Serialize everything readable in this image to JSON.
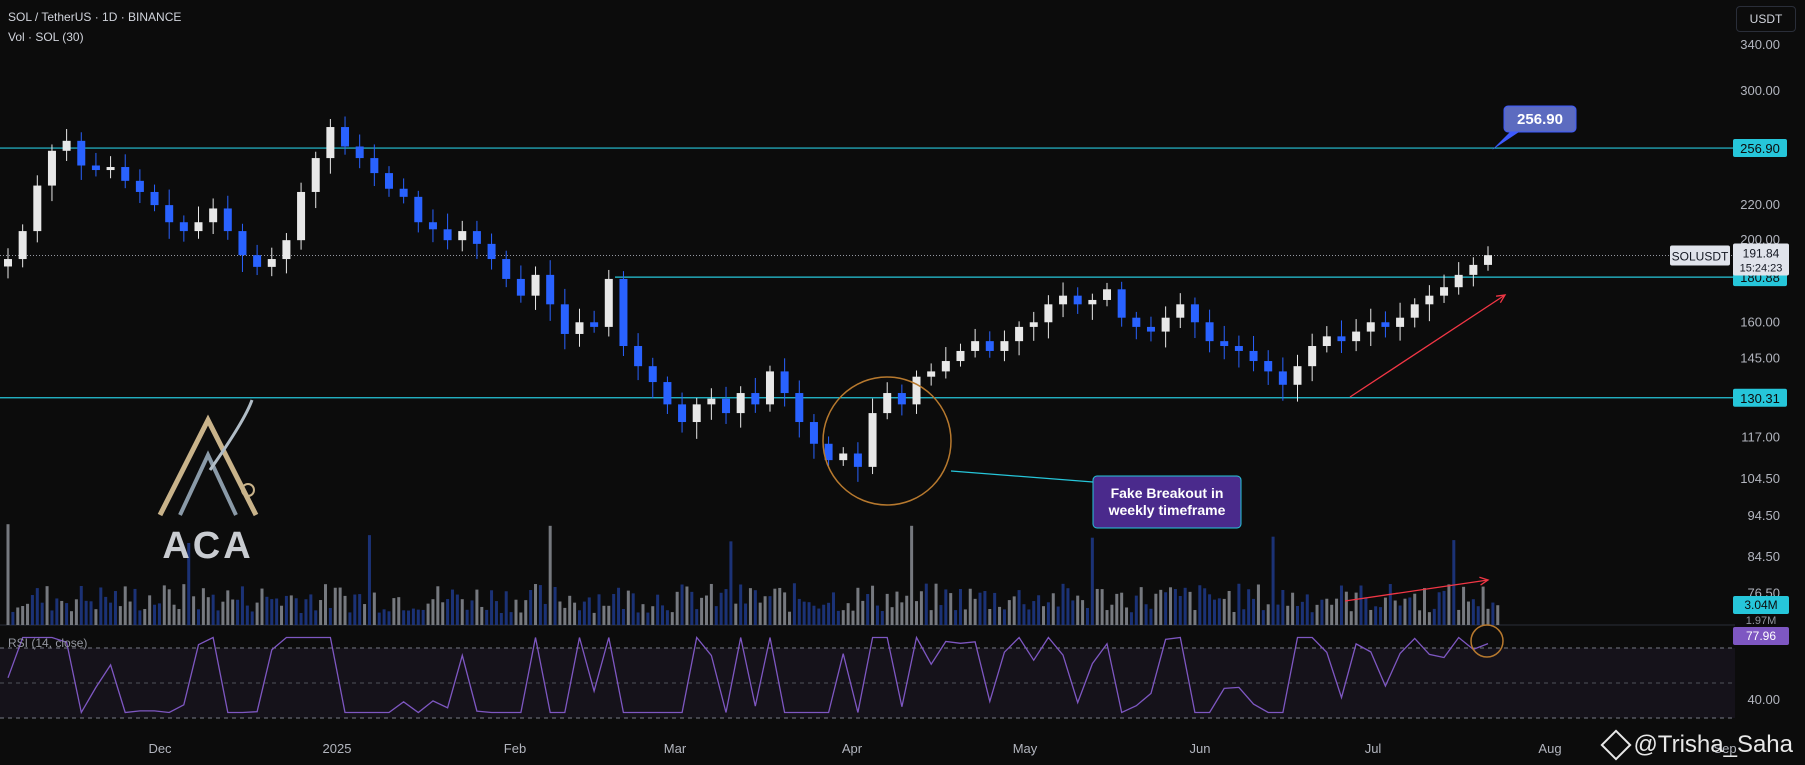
{
  "header": {
    "symbol_line": "SOL / TetherUS · 1D · BINANCE",
    "volume_line": "Vol · SOL (30)"
  },
  "currency_button": "USDT",
  "price_ticks": [
    "340.00",
    "300.00",
    "256.90",
    "220.00",
    "200.00",
    "180.88",
    "160.00",
    "145.00",
    "130.31",
    "117.00",
    "104.50",
    "94.50",
    "84.50",
    "76.50"
  ],
  "time_ticks": [
    "Dec",
    "2025",
    "Feb",
    "Mar",
    "Apr",
    "May",
    "Jun",
    "Jul",
    "Aug",
    "Sep"
  ],
  "level_tags": {
    "resistance": "256.90",
    "support_mid": "180.88",
    "support_low": "130.31"
  },
  "target_bubble": "256.90",
  "last_price": {
    "symbol": "SOLUSDT",
    "price": "191.84",
    "countdown": "15:24:23"
  },
  "volume_tags": {
    "current": "3.04M",
    "average": "1.97M"
  },
  "annotation": {
    "line1": "Fake Breakout in",
    "line2": "weekly timeframe"
  },
  "rsi": {
    "label": "RSI (14, close)",
    "value": "77.96",
    "tick": "40.00"
  },
  "logo": {
    "text": "ACA"
  },
  "watermark": "@Trisha_Saha",
  "colors": {
    "background": "#0c0c0c",
    "up_candle": "#e8e8e8",
    "down_candle": "#2962ff",
    "level_line": "#26c6da",
    "annotation_bg": "#4a2a8c",
    "rsi_line": "#7e57c2",
    "arrow": "#f23645",
    "circle": "#b7792e"
  },
  "chart_data": {
    "type": "candlestick",
    "title": "SOL / TetherUS · 1D · BINANCE",
    "y_scale": "log",
    "ylim": [
      76.5,
      345
    ],
    "x_range": [
      "Nov",
      "Sep"
    ],
    "price_path": [
      190,
      205,
      232,
      255,
      262,
      245,
      242,
      244,
      235,
      228,
      220,
      210,
      205,
      210,
      218,
      205,
      192,
      186,
      190,
      200,
      228,
      250,
      272,
      258,
      250,
      240,
      230,
      225,
      210,
      206,
      200,
      205,
      198,
      190,
      180,
      172,
      182,
      168,
      155,
      160,
      158,
      180,
      150,
      142,
      136,
      128,
      122,
      128,
      130,
      125,
      132,
      128,
      140,
      132,
      122,
      115,
      110,
      112,
      108,
      125,
      132,
      128,
      138,
      140,
      144,
      148,
      152,
      148,
      152,
      158,
      160,
      168,
      172,
      168,
      170,
      175,
      162,
      158,
      156,
      162,
      168,
      160,
      152,
      150,
      148,
      144,
      140,
      135,
      142,
      150,
      154,
      152,
      156,
      160,
      158,
      162,
      168,
      172,
      176,
      182,
      187,
      192
    ],
    "levels": [
      256.9,
      180.88,
      130.31
    ],
    "last_close": 191.84,
    "volume": {
      "current": 3040000,
      "average": 1970000
    },
    "rsi": {
      "period": 14,
      "last": 77.96,
      "overbought": 70,
      "midline": 50,
      "oversold": 30
    }
  }
}
